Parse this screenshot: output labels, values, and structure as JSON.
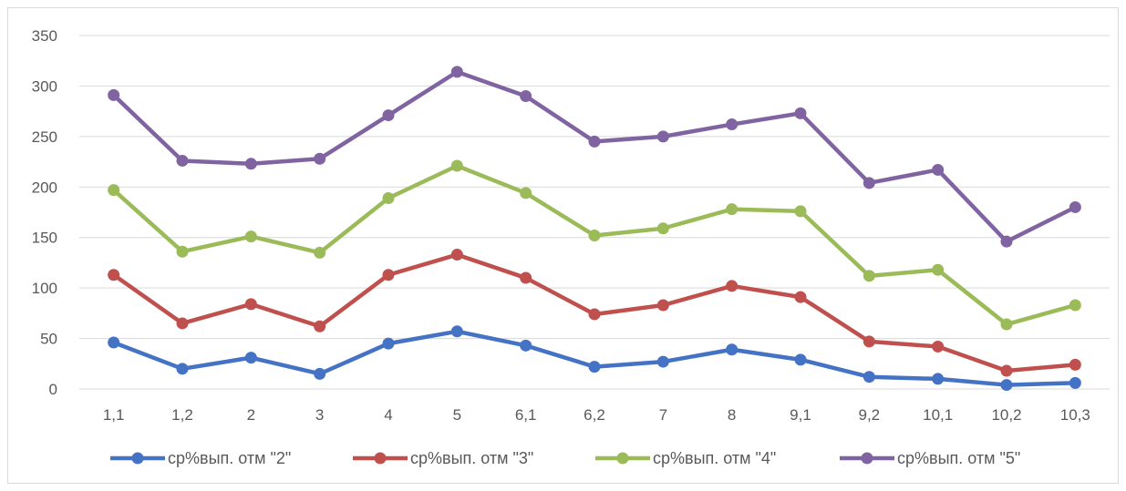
{
  "chart_data": {
    "type": "line",
    "title": "",
    "xlabel": "",
    "ylabel": "",
    "ylim": [
      0,
      350
    ],
    "yticks": [
      0,
      50,
      100,
      150,
      200,
      250,
      300,
      350
    ],
    "grid": true,
    "legend_position": "bottom",
    "categories": [
      "1,1",
      "1,2",
      "2",
      "3",
      "4",
      "5",
      "6,1",
      "6,2",
      "7",
      "8",
      "9,1",
      "9,2",
      "10,1",
      "10,2",
      "10,3"
    ],
    "series": [
      {
        "name": "ср%вып. отм \"2\"",
        "color": "#4472c4",
        "values": [
          46,
          20,
          31,
          15,
          45,
          57,
          43,
          22,
          27,
          39,
          29,
          12,
          10,
          4,
          6
        ]
      },
      {
        "name": "ср%вып. отм \"3\"",
        "color": "#c0504d",
        "values": [
          113,
          65,
          84,
          62,
          113,
          133,
          110,
          74,
          83,
          102,
          91,
          47,
          42,
          18,
          24
        ]
      },
      {
        "name": "ср%вып. отм \"4\"",
        "color": "#9bbb59",
        "values": [
          197,
          136,
          151,
          135,
          189,
          221,
          194,
          152,
          159,
          178,
          176,
          112,
          118,
          64,
          83
        ]
      },
      {
        "name": "ср%вып. отм \"5\"",
        "color": "#8064a2",
        "values": [
          291,
          226,
          223,
          228,
          271,
          314,
          290,
          245,
          250,
          262,
          273,
          204,
          217,
          146,
          180
        ]
      }
    ]
  }
}
